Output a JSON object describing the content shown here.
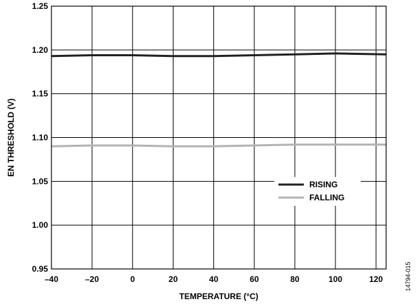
{
  "chart_data": {
    "type": "line",
    "title": "",
    "xlabel": "TEMPERATURE (°C)",
    "ylabel": "EN THRESHOLD (V)",
    "xlim": [
      -40,
      125
    ],
    "ylim": [
      0.95,
      1.25
    ],
    "x_ticks": [
      -40,
      -20,
      0,
      20,
      40,
      60,
      80,
      100,
      120
    ],
    "x_tick_labels": [
      "–40",
      "–20",
      "0",
      "20",
      "40",
      "60",
      "80",
      "100",
      "120"
    ],
    "y_ticks": [
      0.95,
      1.0,
      1.05,
      1.1,
      1.15,
      1.2,
      1.25
    ],
    "y_tick_labels": [
      "0.95",
      "1.00",
      "1.05",
      "1.10",
      "1.15",
      "1.20",
      "1.25"
    ],
    "grid": true,
    "legend_position": "lower-right",
    "series": [
      {
        "name": "RISING",
        "color": "#231f20",
        "x": [
          -40,
          -20,
          0,
          20,
          40,
          60,
          80,
          100,
          125
        ],
        "y": [
          1.193,
          1.194,
          1.194,
          1.193,
          1.193,
          1.194,
          1.195,
          1.196,
          1.195
        ]
      },
      {
        "name": "FALLING",
        "color": "#b3b3b3",
        "x": [
          -40,
          -20,
          0,
          20,
          40,
          60,
          80,
          100,
          125
        ],
        "y": [
          1.09,
          1.091,
          1.091,
          1.09,
          1.09,
          1.091,
          1.092,
          1.092,
          1.092
        ]
      }
    ]
  },
  "figure_id": "14794-015"
}
